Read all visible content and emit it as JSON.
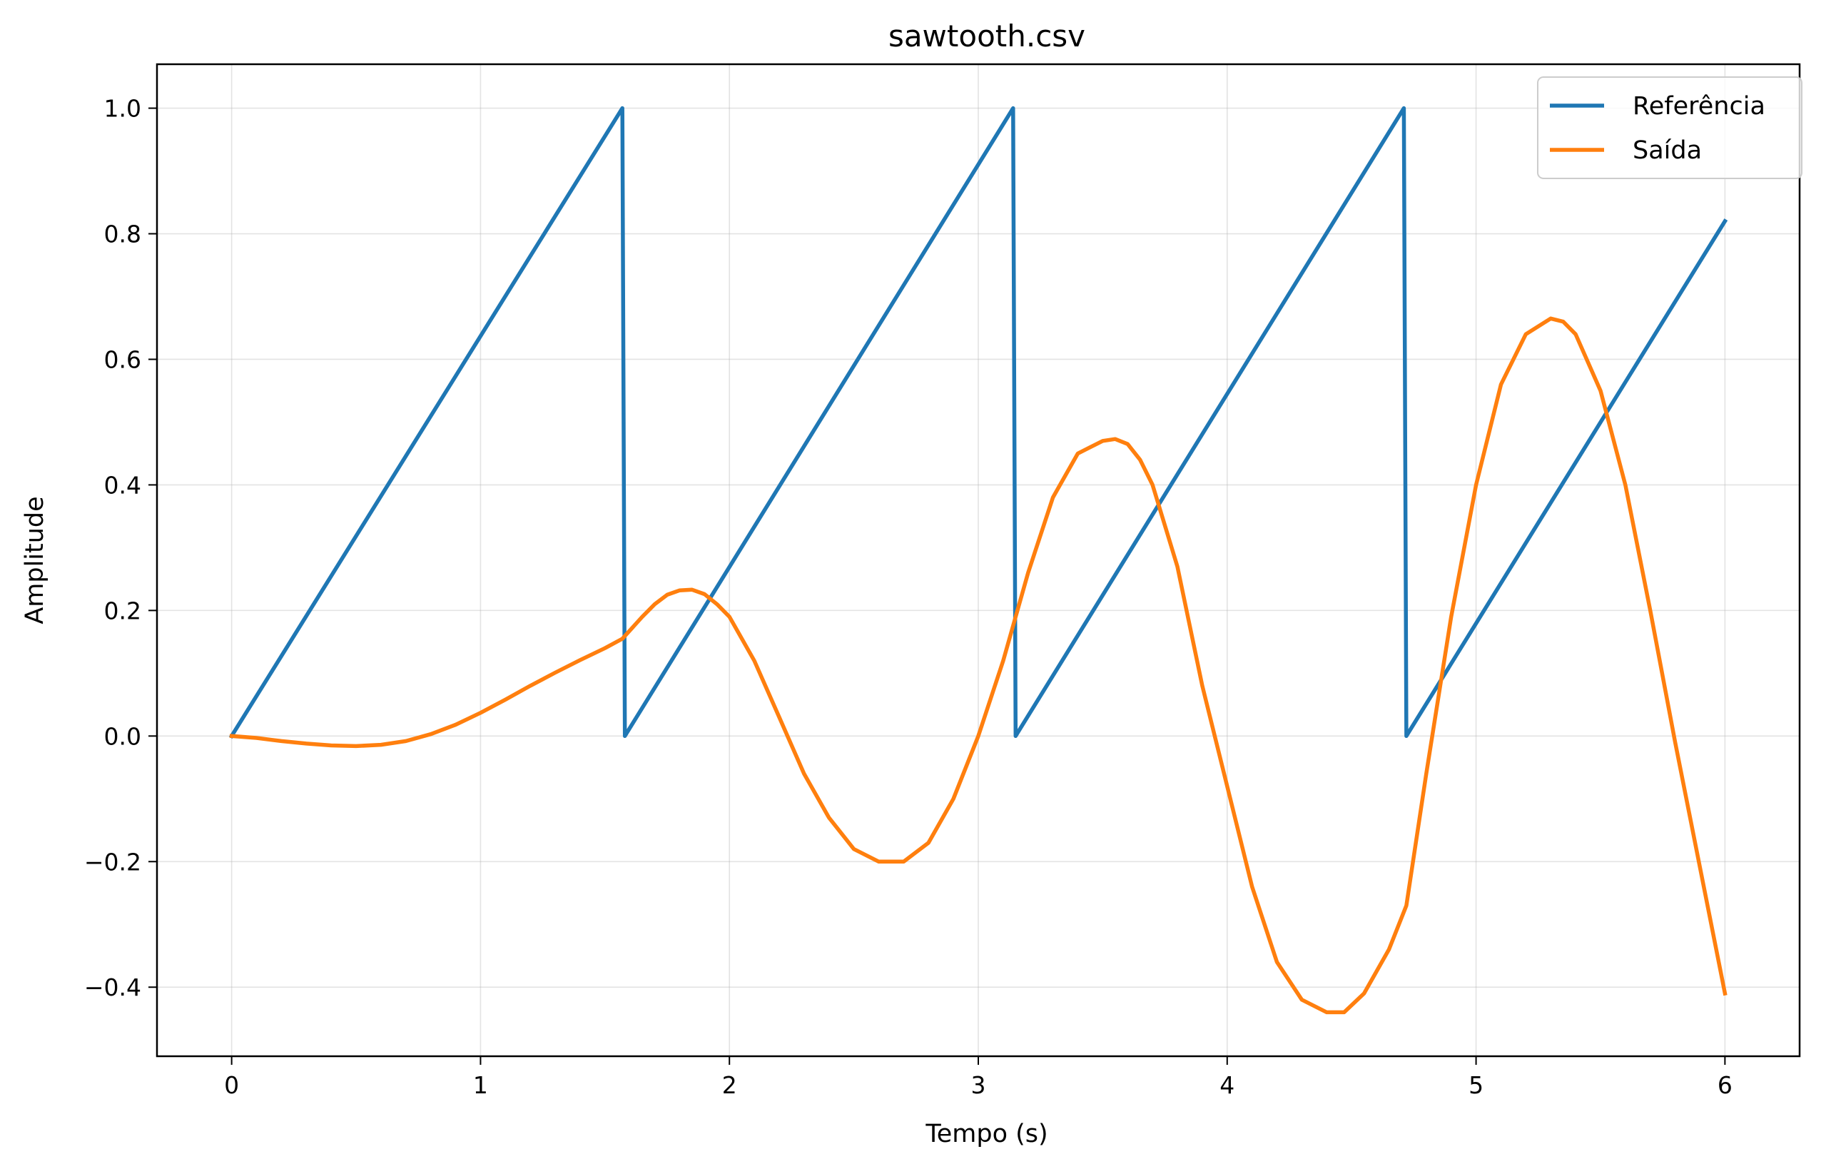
{
  "chart_data": {
    "type": "line",
    "title": "sawtooth.csv",
    "xlabel": "Tempo (s)",
    "ylabel": "Amplitude",
    "xlim": [
      -0.3,
      6.3
    ],
    "ylim": [
      -0.51,
      1.07
    ],
    "xticks": [
      0,
      1,
      2,
      3,
      4,
      5,
      6
    ],
    "xtick_labels": [
      "0",
      "1",
      "2",
      "3",
      "4",
      "5",
      "6"
    ],
    "yticks": [
      -0.4,
      -0.2,
      0.0,
      0.2,
      0.4,
      0.6,
      0.8,
      1.0
    ],
    "ytick_labels": [
      "−0.4",
      "−0.2",
      "0.0",
      "0.2",
      "0.4",
      "0.6",
      "0.8",
      "1.0"
    ],
    "grid": true,
    "legend_position": "top-right",
    "series": [
      {
        "name": "Referência",
        "color": "#1f77b4",
        "x": [
          0.0,
          1.57,
          1.58,
          3.14,
          3.15,
          4.71,
          4.72,
          6.0
        ],
        "y": [
          0.0,
          1.0,
          0.0,
          1.0,
          0.0,
          1.0,
          0.0,
          0.82
        ]
      },
      {
        "name": "Saída",
        "color": "#ff7f0e",
        "x": [
          0.0,
          0.1,
          0.2,
          0.3,
          0.4,
          0.5,
          0.6,
          0.7,
          0.8,
          0.9,
          1.0,
          1.1,
          1.2,
          1.3,
          1.4,
          1.5,
          1.57,
          1.65,
          1.7,
          1.75,
          1.8,
          1.85,
          1.9,
          1.95,
          2.0,
          2.1,
          2.2,
          2.3,
          2.4,
          2.5,
          2.6,
          2.7,
          2.8,
          2.9,
          3.0,
          3.1,
          3.2,
          3.3,
          3.4,
          3.5,
          3.55,
          3.6,
          3.65,
          3.7,
          3.8,
          3.9,
          4.0,
          4.1,
          4.2,
          4.3,
          4.4,
          4.47,
          4.55,
          4.65,
          4.72,
          4.8,
          4.9,
          5.0,
          5.1,
          5.2,
          5.3,
          5.35,
          5.4,
          5.5,
          5.6,
          5.7,
          5.8,
          5.9,
          6.0
        ],
        "y": [
          0.0,
          -0.003,
          -0.008,
          -0.012,
          -0.015,
          -0.016,
          -0.014,
          -0.008,
          0.003,
          0.018,
          0.037,
          0.058,
          0.08,
          0.101,
          0.121,
          0.14,
          0.155,
          0.19,
          0.21,
          0.225,
          0.232,
          0.233,
          0.226,
          0.21,
          0.19,
          0.12,
          0.03,
          -0.06,
          -0.13,
          -0.18,
          -0.2,
          -0.2,
          -0.17,
          -0.1,
          0.0,
          0.12,
          0.26,
          0.38,
          0.45,
          0.47,
          0.473,
          0.465,
          0.44,
          0.4,
          0.27,
          0.08,
          -0.08,
          -0.24,
          -0.36,
          -0.42,
          -0.44,
          -0.44,
          -0.41,
          -0.34,
          -0.27,
          -0.06,
          0.19,
          0.4,
          0.56,
          0.64,
          0.665,
          0.66,
          0.64,
          0.55,
          0.4,
          0.2,
          -0.01,
          -0.21,
          -0.41
        ]
      }
    ]
  }
}
